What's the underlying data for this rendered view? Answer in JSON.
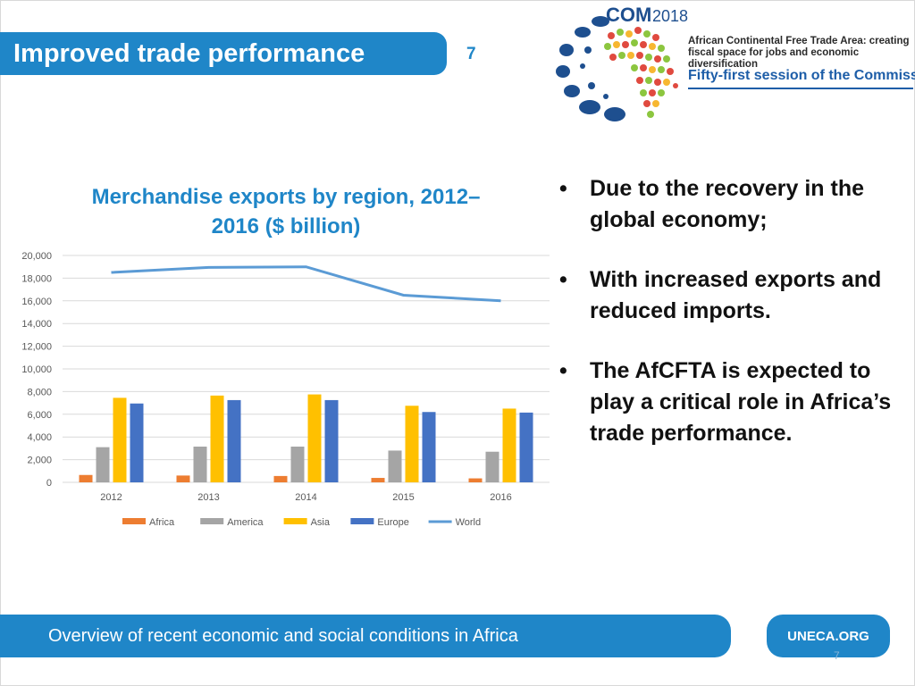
{
  "header": {
    "title": "Improved trade performance",
    "slide_number": "7"
  },
  "logo": {
    "com": "COM",
    "year": "2018",
    "theme": "African Continental Free Trade Area: creating fiscal space for jobs and economic diversification",
    "session": "Fifty-first session of the Commission"
  },
  "chart_data": {
    "type": "bar",
    "title": "Merchandise exports by region, 2012–2016 ($ billion)",
    "categories": [
      "2012",
      "2013",
      "2014",
      "2015",
      "2016"
    ],
    "series": [
      {
        "name": "Africa",
        "type": "bar",
        "color": "#ed7d31",
        "values": [
          650,
          600,
          560,
          390,
          350
        ]
      },
      {
        "name": "America",
        "type": "bar",
        "color": "#a5a5a5",
        "values": [
          3100,
          3150,
          3150,
          2800,
          2700
        ]
      },
      {
        "name": "Asia",
        "type": "bar",
        "color": "#ffc000",
        "values": [
          7450,
          7650,
          7750,
          6750,
          6500
        ]
      },
      {
        "name": "Europe",
        "type": "bar",
        "color": "#4472c4",
        "values": [
          6950,
          7250,
          7250,
          6200,
          6150
        ]
      },
      {
        "name": "World",
        "type": "line",
        "color": "#5b9bd5",
        "values": [
          18500,
          18950,
          19000,
          16500,
          16000
        ]
      }
    ],
    "ylim": [
      0,
      20000
    ],
    "yticks": [
      "0",
      "2,000",
      "4,000",
      "6,000",
      "8,000",
      "10,000",
      "12,000",
      "14,000",
      "16,000",
      "18,000",
      "20,000"
    ],
    "grid": true,
    "legend": "bottom"
  },
  "bullets": [
    "Due to the recovery in the global economy;",
    "With increased exports and reduced imports.",
    "The AfCFTA is expected to play a critical role in Africa’s trade performance."
  ],
  "bullet_symbol": "•",
  "footer": {
    "text": "Overview of recent economic and social conditions in Africa",
    "badge": "UNECA.ORG",
    "slide_number": "7"
  },
  "colors": {
    "accent_blue": "#1f86c8",
    "logo_navy": "#1e4f8f"
  }
}
